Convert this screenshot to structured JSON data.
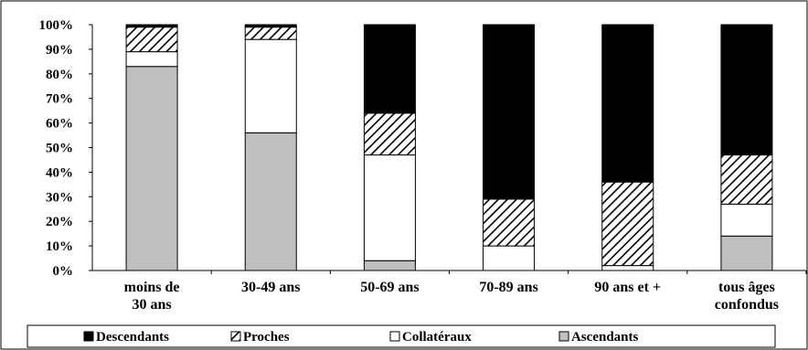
{
  "chart_data": {
    "type": "bar",
    "stacked": true,
    "percent": true,
    "title": "",
    "xlabel": "",
    "ylabel": "",
    "ylim": [
      0,
      100
    ],
    "y_ticks": [
      "0%",
      "10%",
      "20%",
      "30%",
      "40%",
      "50%",
      "60%",
      "70%",
      "80%",
      "90%",
      "100%"
    ],
    "categories": [
      [
        "moins de",
        "30 ans"
      ],
      [
        "30-49 ans"
      ],
      [
        "50-69 ans"
      ],
      [
        "70-89 ans"
      ],
      [
        "90 ans et +"
      ],
      [
        "tous âges",
        "confondus"
      ]
    ],
    "series": [
      {
        "name": "Ascendants",
        "fill": "#bfbfbf",
        "pattern": "solid",
        "values": [
          83,
          56,
          4,
          0,
          0,
          14
        ]
      },
      {
        "name": "Collatéraux",
        "fill": "#ffffff",
        "pattern": "solid",
        "values": [
          6,
          38,
          43,
          10,
          2,
          13
        ]
      },
      {
        "name": "Proches",
        "fill": "#000000",
        "pattern": "hatch",
        "values": [
          10,
          5,
          17,
          19,
          34,
          20
        ]
      },
      {
        "name": "Descendants",
        "fill": "#000000",
        "pattern": "solid",
        "values": [
          1,
          1,
          36,
          71,
          64,
          53
        ]
      }
    ],
    "legend_order": [
      "Descendants",
      "Proches",
      "Collatéraux",
      "Ascendants"
    ],
    "legend_position": "bottom",
    "grid": false
  }
}
